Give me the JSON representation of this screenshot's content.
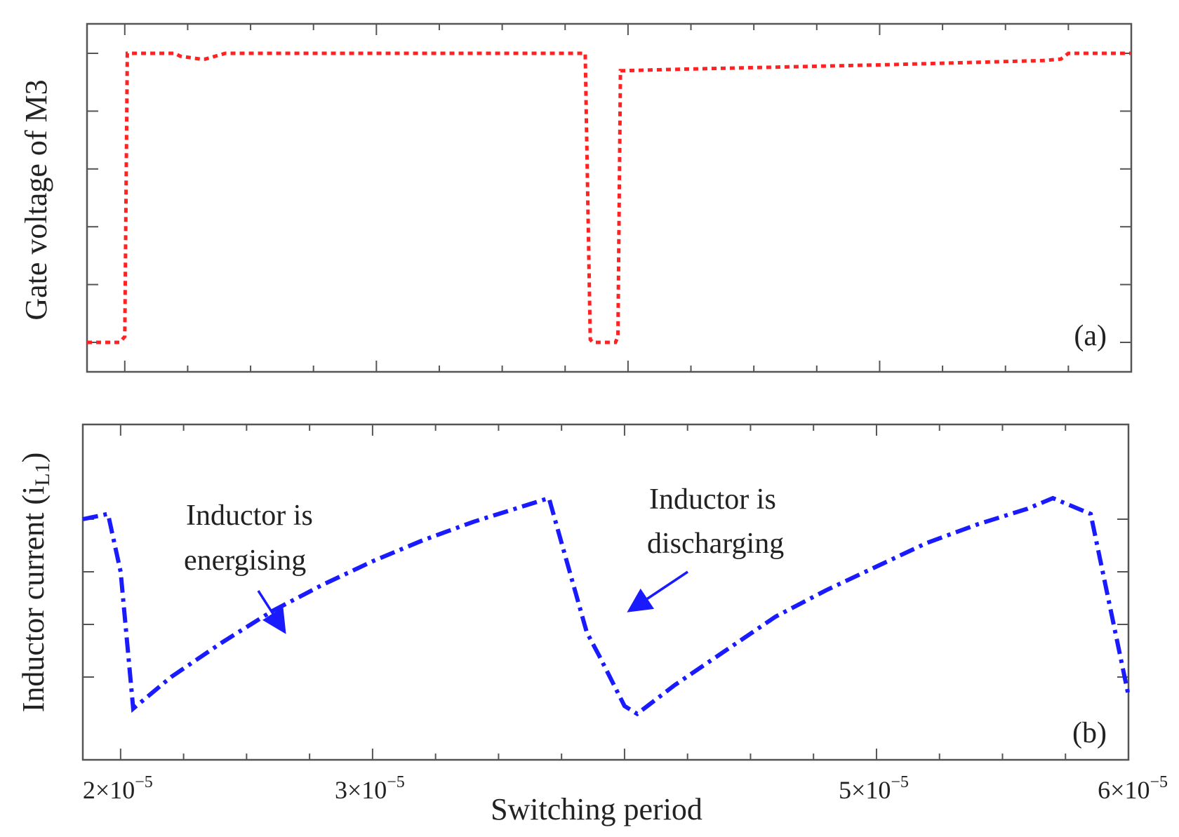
{
  "chart_data": [
    {
      "panel": "(a)",
      "type": "line",
      "ylabel": "Gate voltage of M3",
      "xlim": [
        1.85e-05,
        6e-05
      ],
      "ylim": [
        0,
        1
      ],
      "y_ticks": [
        0,
        0.2,
        0.4,
        0.6,
        0.8,
        1.0
      ],
      "series": [
        {
          "name": "Gate voltage of M3",
          "color": "#ff2222",
          "style": "dotted",
          "x": [
            1.85e-05,
            1.98e-05,
            2e-05,
            2.01e-05,
            2.2e-05,
            2.22e-05,
            2.3e-05,
            2.32e-05,
            2.4e-05,
            3e-05,
            3.6e-05,
            3.83e-05,
            3.84e-05,
            3.85e-05,
            3.86e-05,
            3.95e-05,
            3.96e-05,
            3.97e-05,
            3.99e-05,
            4.2e-05,
            5e-05,
            5.65e-05,
            5.72e-05,
            5.75e-05,
            6e-05
          ],
          "y": [
            0,
            0,
            0.02,
            1.0,
            1.0,
            0.99,
            0.98,
            0.98,
            1.0,
            1.0,
            1.0,
            1.0,
            0.5,
            0.01,
            0.0,
            0.0,
            0.02,
            0.94,
            0.94,
            0.945,
            0.96,
            0.975,
            0.98,
            1.0,
            1.0
          ]
        }
      ]
    },
    {
      "panel": "(b)",
      "type": "line",
      "ylabel": "Inductor current (i",
      "ylabel_sub": "L1",
      "ylabel_close": ")",
      "xlabel": "Switching period",
      "xlim": [
        1.85e-05,
        6e-05
      ],
      "ylim": [
        0,
        1
      ],
      "x_ticks": [
        "2×10",
        "3×10",
        "5×10",
        "6×10"
      ],
      "x_tick_values": [
        2e-05,
        3e-05,
        5e-05,
        6e-05
      ],
      "x_tick_exp": "−5",
      "y_ticks": [
        0.2,
        0.4,
        0.6,
        0.8
      ],
      "series": [
        {
          "name": "Inductor current (iL1)",
          "color": "#1a1aff",
          "style": "dashdot",
          "x": [
            1.85e-05,
            1.95e-05,
            2e-05,
            2.05e-05,
            2.2e-05,
            2.4e-05,
            2.6e-05,
            2.8e-05,
            3e-05,
            3.2e-05,
            3.4e-05,
            3.6e-05,
            3.7e-05,
            3.85e-05,
            3.9e-05,
            4e-05,
            4.05e-05,
            4.2e-05,
            4.4e-05,
            4.6e-05,
            4.8e-05,
            5e-05,
            5.2e-05,
            5.4e-05,
            5.6e-05,
            5.7e-05,
            5.85e-05,
            6e-05
          ],
          "y": [
            0.8,
            0.82,
            0.6,
            0.08,
            0.2,
            0.33,
            0.45,
            0.55,
            0.64,
            0.72,
            0.79,
            0.85,
            0.88,
            0.37,
            0.28,
            0.09,
            0.06,
            0.17,
            0.3,
            0.43,
            0.53,
            0.62,
            0.71,
            0.78,
            0.84,
            0.88,
            0.82,
            0.13
          ]
        }
      ],
      "annotations": [
        {
          "line1": "Inductor is",
          "line2": "energising"
        },
        {
          "line1": "Inductor is",
          "line2": "discharging"
        }
      ]
    }
  ]
}
